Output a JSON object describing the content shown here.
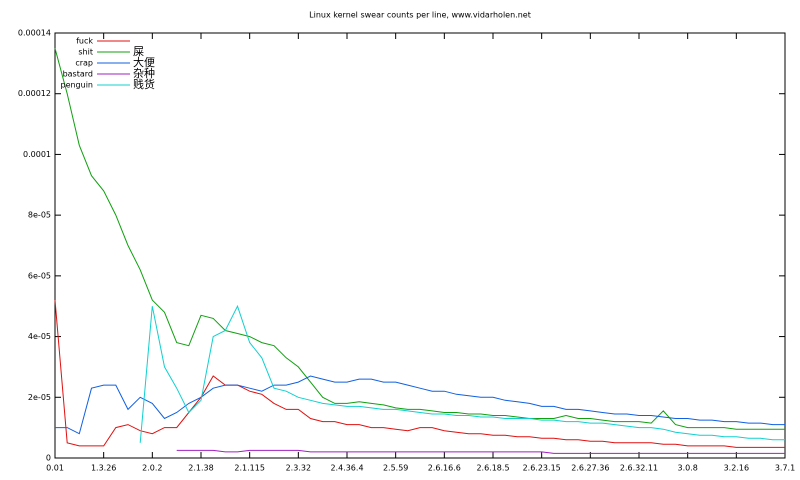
{
  "chart_data": {
    "type": "line",
    "title": "Linux kernel swear counts per line, www.vidarholen.net",
    "categories": [
      "0.01",
      null,
      null,
      null,
      "1.3.26",
      null,
      null,
      null,
      "2.0.2",
      null,
      null,
      null,
      "2.1.38",
      null,
      null,
      null,
      "2.1.115",
      null,
      null,
      null,
      "2.3.32",
      null,
      null,
      null,
      "2.4.36.4",
      null,
      null,
      null,
      "2.5.59",
      null,
      null,
      null,
      "2.6.16.6",
      null,
      null,
      null,
      "2.6.18.5",
      null,
      null,
      null,
      "2.6.23.15",
      null,
      null,
      null,
      "2.6.27.36",
      null,
      null,
      null,
      "2.6.32.11",
      null,
      null,
      null,
      "3.0.8",
      null,
      null,
      null,
      "3.2.16",
      null,
      null,
      null,
      "3.7.1"
    ],
    "series": [
      {
        "name": "fuck",
        "color": "#e01010",
        "values": [
          5.2e-05,
          5e-06,
          4e-06,
          4e-06,
          4e-06,
          1e-05,
          1.1e-05,
          9e-06,
          8e-06,
          1e-05,
          1e-05,
          1.5e-05,
          2e-05,
          2.7e-05,
          2.4e-05,
          2.4e-05,
          2.2e-05,
          2.1e-05,
          1.8e-05,
          1.6e-05,
          1.6e-05,
          1.3e-05,
          1.2e-05,
          1.2e-05,
          1.1e-05,
          1.1e-05,
          1e-05,
          1e-05,
          9.5e-06,
          9e-06,
          1e-05,
          1e-05,
          9e-06,
          8.5e-06,
          8e-06,
          8e-06,
          7.5e-06,
          7.5e-06,
          7e-06,
          7e-06,
          6.5e-06,
          6.5e-06,
          6e-06,
          6e-06,
          5.5e-06,
          5.5e-06,
          5e-06,
          5e-06,
          5e-06,
          5e-06,
          4.5e-06,
          4.5e-06,
          4e-06,
          4e-06,
          4e-06,
          4e-06,
          3.5e-06,
          3.5e-06,
          3.5e-06,
          3.5e-06,
          3.5e-06
        ]
      },
      {
        "name": "shit",
        "color": "#10a010",
        "values": [
          0.000135,
          0.00012,
          0.000103,
          9.3e-05,
          8.8e-05,
          8e-05,
          7e-05,
          6.2e-05,
          5.2e-05,
          4.8e-05,
          3.8e-05,
          3.7e-05,
          4.7e-05,
          4.6e-05,
          4.2e-05,
          4.1e-05,
          4e-05,
          3.8e-05,
          3.7e-05,
          3.3e-05,
          3e-05,
          2.5e-05,
          2e-05,
          1.8e-05,
          1.8e-05,
          1.85e-05,
          1.8e-05,
          1.75e-05,
          1.65e-05,
          1.6e-05,
          1.6e-05,
          1.55e-05,
          1.5e-05,
          1.5e-05,
          1.45e-05,
          1.45e-05,
          1.4e-05,
          1.4e-05,
          1.35e-05,
          1.3e-05,
          1.3e-05,
          1.3e-05,
          1.4e-05,
          1.3e-05,
          1.3e-05,
          1.25e-05,
          1.2e-05,
          1.2e-05,
          1.2e-05,
          1.15e-05,
          1.55e-05,
          1.1e-05,
          1e-05,
          1e-05,
          1e-05,
          1e-05,
          9.5e-06,
          9.5e-06,
          9.5e-06,
          9.5e-06,
          9.5e-06
        ]
      },
      {
        "name": "crap",
        "color": "#1060e0",
        "values": [
          1e-05,
          1e-05,
          8e-06,
          2.3e-05,
          2.4e-05,
          2.4e-05,
          1.6e-05,
          2e-05,
          1.8e-05,
          1.3e-05,
          1.5e-05,
          1.8e-05,
          2e-05,
          2.3e-05,
          2.4e-05,
          2.4e-05,
          2.3e-05,
          2.2e-05,
          2.4e-05,
          2.4e-05,
          2.5e-05,
          2.7e-05,
          2.6e-05,
          2.5e-05,
          2.5e-05,
          2.6e-05,
          2.6e-05,
          2.5e-05,
          2.5e-05,
          2.4e-05,
          2.3e-05,
          2.2e-05,
          2.2e-05,
          2.1e-05,
          2.05e-05,
          2e-05,
          2e-05,
          1.9e-05,
          1.85e-05,
          1.8e-05,
          1.7e-05,
          1.7e-05,
          1.6e-05,
          1.6e-05,
          1.55e-05,
          1.5e-05,
          1.45e-05,
          1.45e-05,
          1.4e-05,
          1.4e-05,
          1.35e-05,
          1.3e-05,
          1.3e-05,
          1.25e-05,
          1.25e-05,
          1.2e-05,
          1.2e-05,
          1.15e-05,
          1.15e-05,
          1.1e-05,
          1.1e-05
        ]
      },
      {
        "name": "bastard",
        "color": "#a020c0",
        "values": [
          null,
          null,
          null,
          null,
          null,
          null,
          null,
          null,
          null,
          null,
          2.5e-06,
          2.5e-06,
          2.5e-06,
          2.5e-06,
          2e-06,
          2e-06,
          2.5e-06,
          2.5e-06,
          2.5e-06,
          2.5e-06,
          2.5e-06,
          2e-06,
          2e-06,
          2e-06,
          2e-06,
          2e-06,
          2e-06,
          2e-06,
          2e-06,
          2e-06,
          2e-06,
          2e-06,
          2e-06,
          2e-06,
          2e-06,
          2e-06,
          2e-06,
          2e-06,
          2e-06,
          2e-06,
          2e-06,
          1.5e-06,
          1.5e-06,
          1.5e-06,
          1.5e-06,
          1.5e-06,
          1.5e-06,
          1.5e-06,
          1.5e-06,
          1.5e-06,
          1.5e-06,
          1.5e-06,
          1.5e-06,
          1.5e-06,
          1.5e-06,
          1.5e-06,
          1.5e-06,
          1.5e-06,
          1.5e-06,
          1.5e-06,
          1.5e-06
        ]
      },
      {
        "name": "penguin",
        "color": "#10d0d0",
        "values": [
          null,
          null,
          null,
          null,
          null,
          null,
          null,
          5e-06,
          5e-05,
          3e-05,
          2.3e-05,
          1.5e-05,
          1.9e-05,
          4e-05,
          4.2e-05,
          5e-05,
          3.8e-05,
          3.3e-05,
          2.3e-05,
          2.2e-05,
          2e-05,
          1.9e-05,
          1.8e-05,
          1.75e-05,
          1.7e-05,
          1.7e-05,
          1.65e-05,
          1.6e-05,
          1.6e-05,
          1.55e-05,
          1.5e-05,
          1.45e-05,
          1.45e-05,
          1.4e-05,
          1.4e-05,
          1.35e-05,
          1.35e-05,
          1.3e-05,
          1.3e-05,
          1.3e-05,
          1.25e-05,
          1.25e-05,
          1.2e-05,
          1.2e-05,
          1.15e-05,
          1.15e-05,
          1.1e-05,
          1.05e-05,
          1e-05,
          1e-05,
          9.5e-06,
          8.5e-06,
          8e-06,
          7.5e-06,
          7.5e-06,
          7e-06,
          7e-06,
          6.5e-06,
          6.5e-06,
          6e-06,
          6e-06
        ]
      }
    ],
    "annotations": [
      {
        "text": "屎",
        "color": "#ff2020"
      },
      {
        "text": "大便",
        "color": "#ff2020"
      },
      {
        "text": "杂种",
        "color": "#ff2020"
      },
      {
        "text": "贱货",
        "color": "#ff2020"
      }
    ],
    "ylim": [
      0,
      0.00014
    ],
    "yticks": [
      0,
      {
        "value": 2e-05,
        "label": "2e-05"
      },
      {
        "value": 4e-05,
        "label": "4e-05"
      },
      {
        "value": 6e-05,
        "label": "6e-05"
      },
      {
        "value": 8e-05,
        "label": "8e-05"
      },
      0.0001,
      0.00012,
      0.00014
    ],
    "legend": "top-left"
  }
}
